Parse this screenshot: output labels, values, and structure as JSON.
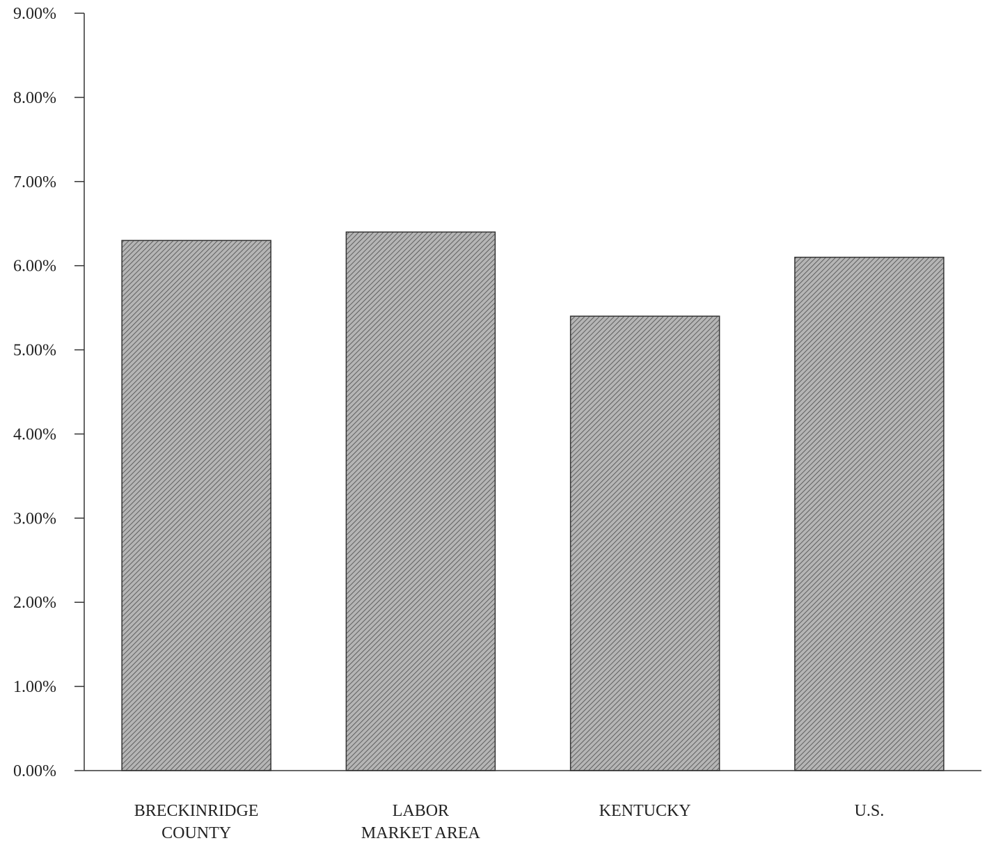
{
  "chart_data": {
    "type": "bar",
    "title": "",
    "xlabel": "",
    "ylabel": "",
    "categories": [
      [
        "BRECKINRIDGE",
        "COUNTY"
      ],
      [
        "LABOR",
        "MARKET AREA"
      ],
      [
        "KENTUCKY"
      ],
      [
        "U.S."
      ]
    ],
    "values": [
      6.3,
      6.4,
      5.4,
      6.1
    ],
    "ylim": [
      0,
      9
    ],
    "yticks": [
      "0.00%",
      "1.00%",
      "2.00%",
      "3.00%",
      "4.00%",
      "5.00%",
      "6.00%",
      "7.00%",
      "8.00%",
      "9.00%"
    ],
    "grid": false,
    "legend": "none",
    "bar_fill": "#b5b5b5",
    "hatch_color": "#4a4a4a"
  }
}
